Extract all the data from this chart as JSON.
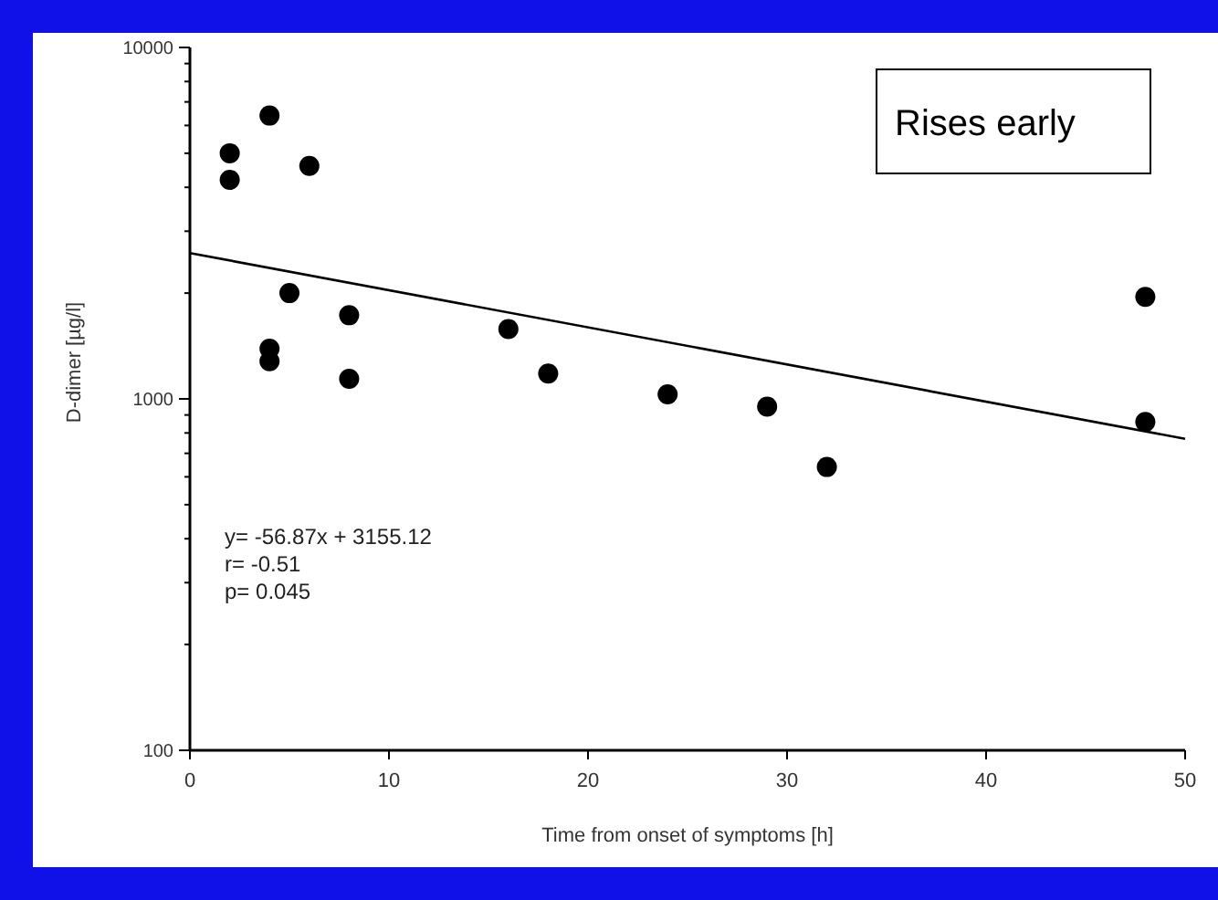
{
  "chart_data": {
    "type": "scatter",
    "title": "Rises early",
    "xlabel": "Time from onset of symptoms [h]",
    "ylabel": "D-dimer [µg/l]",
    "annotations": [
      "y= -56.87x + 3155.12",
      "r= -0.51",
      "p= 0.045"
    ],
    "log": "y",
    "xlim": [
      0,
      50
    ],
    "ylim": [
      100,
      10000
    ],
    "xticks": [
      0,
      10,
      20,
      30,
      40,
      50
    ],
    "yticks": [
      100,
      {
        "value": 200,
        "label": null
      },
      {
        "value": 300,
        "label": null
      },
      {
        "value": 400,
        "label": null
      },
      {
        "value": 500,
        "label": null
      },
      {
        "value": 600,
        "label": null
      },
      {
        "value": 700,
        "label": null
      },
      {
        "value": 800,
        "label": null
      },
      {
        "value": 900,
        "label": null
      },
      1000,
      {
        "value": 2000,
        "label": null
      },
      {
        "value": 3000,
        "label": null
      },
      {
        "value": 4000,
        "label": null
      },
      {
        "value": 5000,
        "label": null
      },
      {
        "value": 6000,
        "label": null
      },
      {
        "value": 7000,
        "label": null
      },
      {
        "value": 8000,
        "label": null
      },
      {
        "value": 9000,
        "label": null
      },
      10000
    ],
    "series": [
      {
        "color": "#000000",
        "marker": "circle",
        "x": [
          2,
          2,
          4,
          6,
          5,
          4,
          4,
          8,
          8,
          16,
          18,
          24,
          29,
          32,
          48,
          48
        ],
        "values": [
          5000,
          4200,
          6400,
          4600,
          2000,
          1390,
          1280,
          1730,
          1140,
          1580,
          1180,
          1030,
          950,
          640,
          1950,
          860
        ]
      },
      {
        "type": "line",
        "color": "#000000",
        "line_style": "solid",
        "x": [
          0,
          50
        ],
        "values": [
          2600,
          770
        ]
      }
    ]
  }
}
